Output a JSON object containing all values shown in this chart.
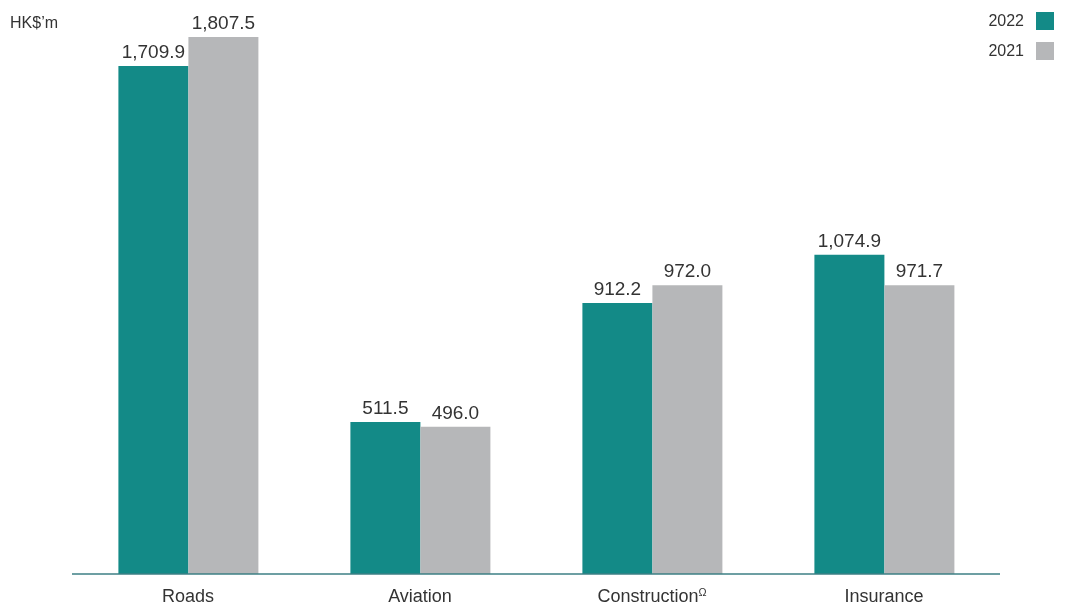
{
  "chart_data": {
    "type": "bar",
    "ylabel": "HK$’m",
    "categories": [
      "Roads",
      "Aviation",
      "Construction$^{Ω}$",
      "Insurance"
    ],
    "series": [
      {
        "name": "2022",
        "color": "#138a87",
        "values": [
          1709.9,
          511.5,
          912.2,
          1074.9
        ],
        "value_labels": [
          "1,709.9",
          "511.5",
          "912.2",
          "1,074.9"
        ]
      },
      {
        "name": "2021",
        "color": "#b6b7b9",
        "values": [
          1807.5,
          496.0,
          972.0,
          971.7
        ],
        "value_labels": [
          "1,807.5",
          "496.0",
          "972.0",
          "971.7"
        ]
      }
    ],
    "legend": "top right",
    "grid": false
  }
}
